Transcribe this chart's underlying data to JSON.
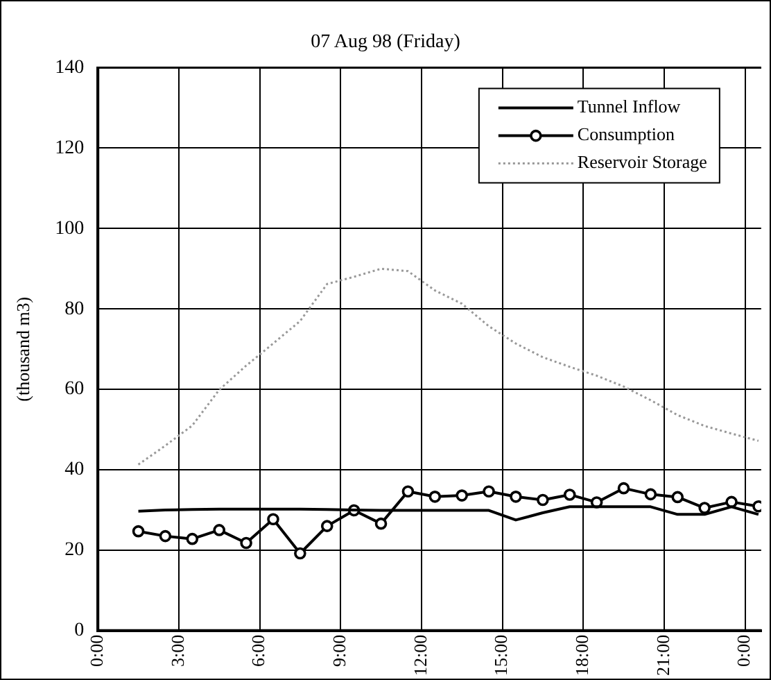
{
  "chart_data": {
    "type": "line",
    "title": "07 Aug 98 (Friday)",
    "ylabel": "(thousand m3)",
    "x": [
      1.5,
      2.5,
      3.5,
      4.5,
      5.5,
      6.5,
      7.5,
      8.5,
      9.5,
      10.5,
      11.5,
      12.5,
      13.5,
      14.5,
      15.5,
      16.5,
      17.5,
      18.5,
      19.5,
      20.5,
      21.5,
      22.5,
      23.5,
      24.5
    ],
    "xlim": [
      0,
      24.6
    ],
    "xticks": [
      {
        "value": 0,
        "label": "0:00"
      },
      {
        "value": 3,
        "label": "3:00"
      },
      {
        "value": 6,
        "label": "6:00"
      },
      {
        "value": 9,
        "label": "9:00"
      },
      {
        "value": 12,
        "label": "12:00"
      },
      {
        "value": 15,
        "label": "15:00"
      },
      {
        "value": 18,
        "label": "18:00"
      },
      {
        "value": 21,
        "label": "21:00"
      },
      {
        "value": 24,
        "label": "0:00"
      }
    ],
    "ylim": [
      0,
      140
    ],
    "yticks": [
      0,
      20,
      40,
      60,
      80,
      100,
      120,
      140
    ],
    "grid": true,
    "legend": "top right",
    "series": [
      {
        "name": "Tunnel Inflow",
        "color": "#000000",
        "marker": "none",
        "line_style": "solid",
        "values": [
          29.7,
          30,
          30.1,
          30.2,
          30.2,
          30.2,
          30.2,
          30.1,
          30,
          29.9,
          29.9,
          29.9,
          29.9,
          29.9,
          27.5,
          29.3,
          30.8,
          30.8,
          30.8,
          30.8,
          28.9,
          28.9,
          30.8,
          28.9
        ]
      },
      {
        "name": "Consumption",
        "color": "#000000",
        "marker": "circle",
        "line_style": "solid",
        "values": [
          24.7,
          23.5,
          22.8,
          25,
          21.8,
          27.7,
          19.2,
          26,
          29.9,
          26.6,
          34.6,
          33.3,
          33.6,
          34.6,
          33.3,
          32.5,
          33.8,
          31.9,
          35.4,
          33.9,
          33.2,
          30.5,
          32,
          30.9
        ]
      },
      {
        "name": "Reservoir Storage",
        "color": "#999999",
        "marker": "none",
        "line_style": "dotted",
        "values": [
          41.3,
          46,
          51,
          59.9,
          65.9,
          71.4,
          77,
          86.2,
          88,
          90,
          89.4,
          84.6,
          81.3,
          75.7,
          71.4,
          68,
          65.6,
          63.4,
          60.7,
          57.3,
          53.6,
          50.9,
          49,
          47.2
        ]
      }
    ]
  }
}
